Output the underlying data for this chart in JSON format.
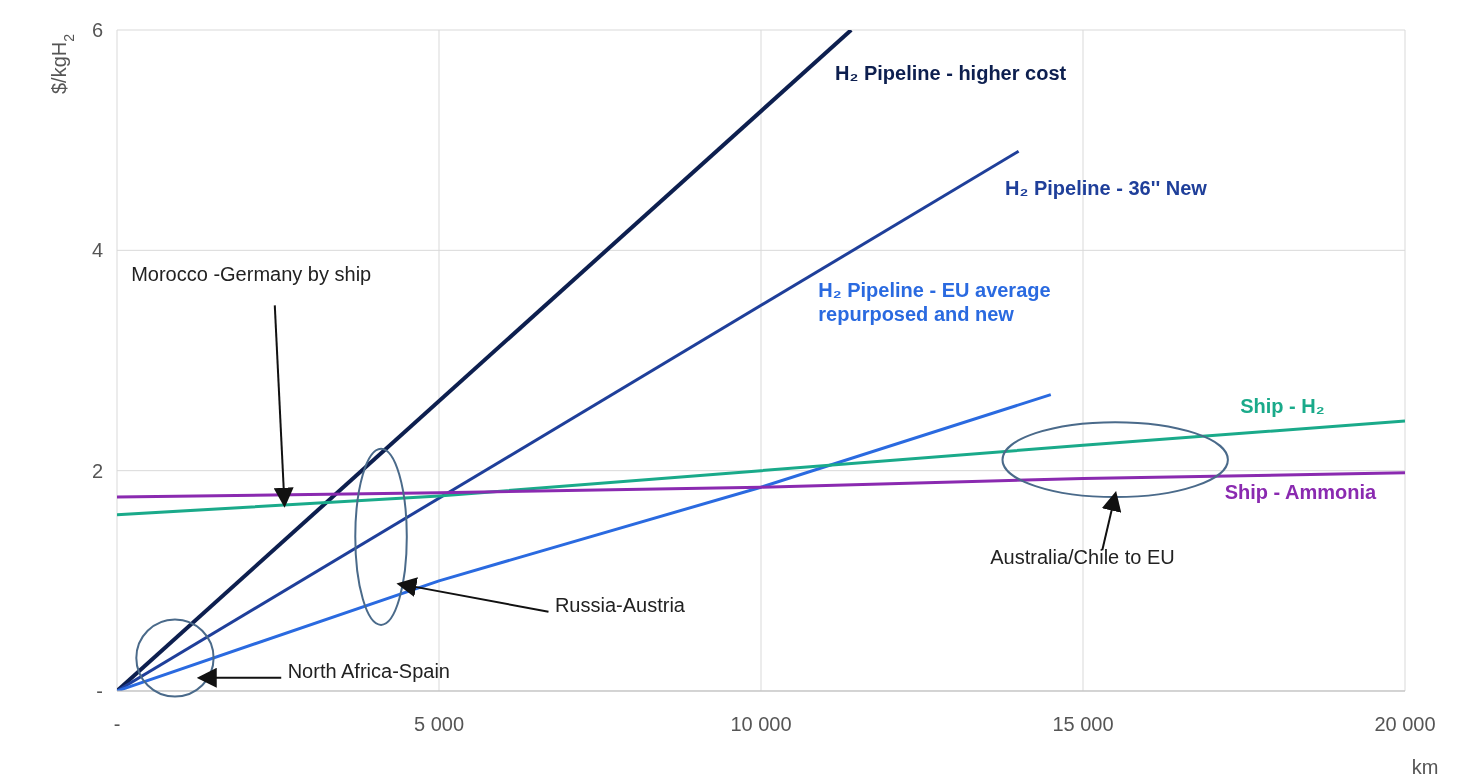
{
  "chart_data": {
    "type": "line",
    "xlabel": "km",
    "ylabel": "$/kgH$_{2}$",
    "xlim": [
      0,
      20000
    ],
    "ylim": [
      0,
      6
    ],
    "xticks": [
      {
        "value": 0,
        "label": "-"
      },
      {
        "value": 5000,
        "label": "5 000"
      },
      {
        "value": 10000,
        "label": "10 000"
      },
      {
        "value": 15000,
        "label": "15 000"
      },
      {
        "value": 20000,
        "label": "20 000"
      }
    ],
    "yticks": [
      {
        "value": 0,
        "label": "-"
      },
      2,
      4,
      6
    ],
    "grid": true,
    "legend": false,
    "marker": "none",
    "line_style": "solid",
    "series": [
      {
        "name": "H₂ Pipeline - higher cost",
        "color": "#0d1f4f",
        "x": [
          0,
          11400
        ],
        "values": [
          0,
          6
        ]
      },
      {
        "name": "H₂ Pipeline - 36'' New",
        "color": "#1f3f9a",
        "x": [
          0,
          14000
        ],
        "values": [
          0,
          4.9
        ]
      },
      {
        "name": "H₂ Pipeline - EU average repurposed and new",
        "color": "#2a6ae0",
        "x": [
          0,
          5000,
          10000,
          14500
        ],
        "values": [
          0,
          1,
          1.85,
          2.69
        ]
      },
      {
        "name": "Ship - H₂",
        "color": "#1aaa8a",
        "x": [
          0,
          5000,
          10000,
          15000,
          20000
        ],
        "values": [
          1.6,
          1.77,
          2,
          2.23,
          2.45
        ]
      },
      {
        "name": "Ship - Ammonia",
        "color": "#8a2ab0",
        "x": [
          0,
          5000,
          10000,
          15000,
          20000
        ],
        "values": [
          1.76,
          1.8,
          1.85,
          1.93,
          1.98
        ]
      }
    ],
    "annotations": [
      {
        "text": "Morocco -Germany by ship",
        "x": 2600,
        "y": 1.7
      },
      "Russia-Austria",
      "North Africa-Spain",
      "Australia/Chile to EU"
    ]
  }
}
